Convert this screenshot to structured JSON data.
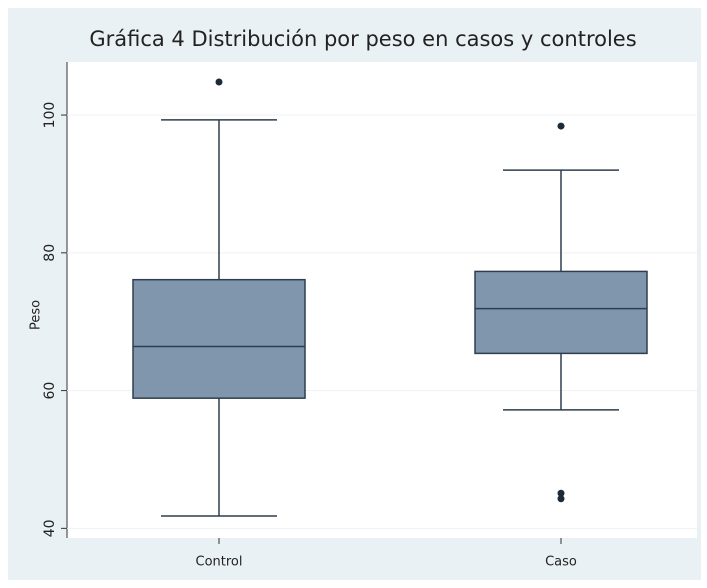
{
  "chart_data": {
    "type": "box",
    "title": "Gráfica 4 Distribución por peso en casos y controles",
    "ylabel": "Peso",
    "categories": [
      "Control",
      "Caso"
    ],
    "boxes": [
      {
        "low": 41.8,
        "q1": 58.9,
        "median": 66.4,
        "q3": 76.1,
        "high": 99.3,
        "outliers": [
          104.8
        ]
      },
      {
        "low": 57.2,
        "q1": 65.4,
        "median": 71.9,
        "q3": 77.3,
        "high": 92,
        "outliers": [
          98.4,
          45.1,
          44.3
        ]
      }
    ],
    "color": "#7f96ad",
    "ylim": [
      38.6,
      107.7
    ],
    "yticks": [
      40,
      60,
      80,
      100
    ],
    "grid": true
  }
}
